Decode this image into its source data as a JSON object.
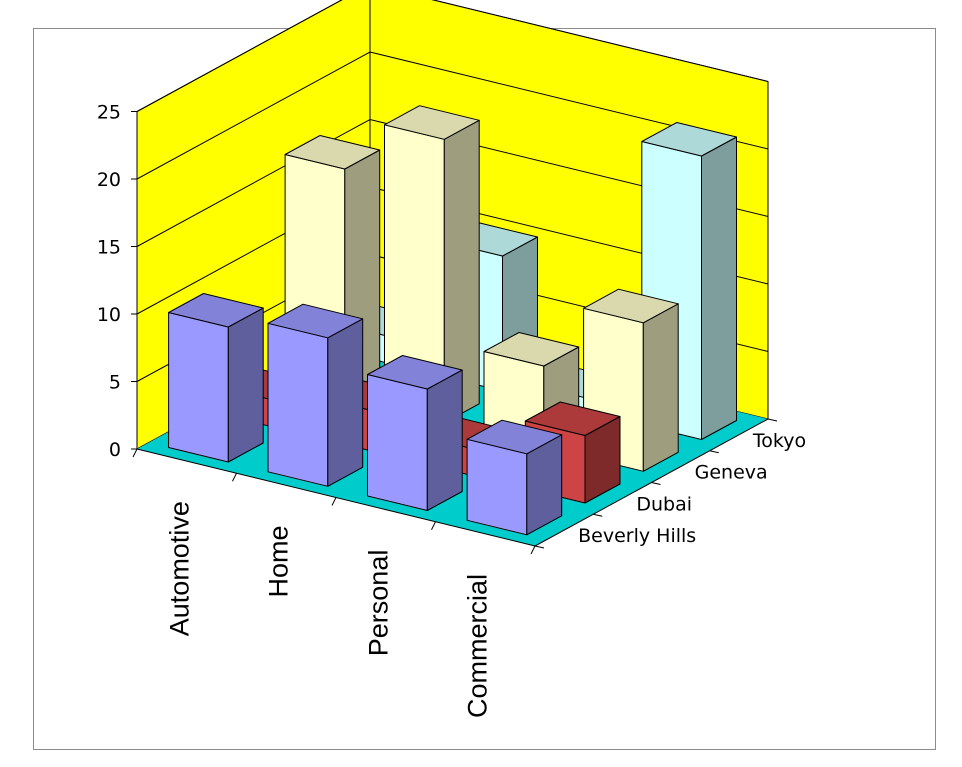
{
  "chart_data": {
    "type": "bar",
    "variant": "3d-column",
    "categories": [
      "Automotive",
      "Home",
      "Personal",
      "Commercial"
    ],
    "series": [
      {
        "name": "Beverly Hills",
        "values": [
          10,
          11,
          9,
          6
        ],
        "color": "#9999ff"
      },
      {
        "name": "Dubai",
        "values": [
          2,
          3,
          2,
          5
        ],
        "color": "#cc4444"
      },
      {
        "name": "Geneva",
        "values": [
          17,
          21,
          6,
          11
        ],
        "color": "#ffffcc"
      },
      {
        "name": "Tokyo",
        "values": [
          2,
          10,
          1,
          21
        ],
        "color": "#ccffff"
      }
    ],
    "y_ticks": [
      "0",
      "5",
      "10",
      "15",
      "20",
      "25"
    ],
    "ylim": [
      0,
      25
    ],
    "grid": true,
    "walls_color": "#ffff00",
    "floor_color": "#00cccc",
    "title": "",
    "xlabel": "",
    "ylabel": ""
  }
}
